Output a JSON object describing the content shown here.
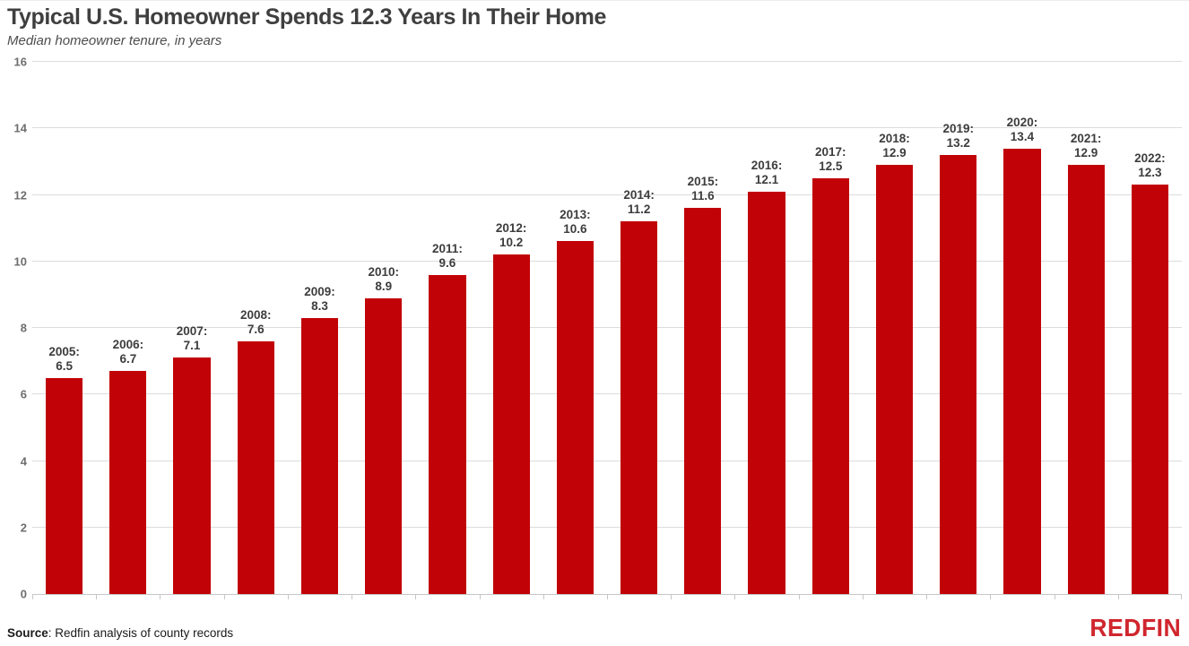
{
  "header": {
    "title": "Typical U.S. Homeowner Spends 12.3 Years In Their Home",
    "subtitle": "Median homeowner tenure, in years"
  },
  "footer": {
    "source_label": "Source",
    "source_text": ": Redfin analysis of county records",
    "logo_text": "REDFIN"
  },
  "colors": {
    "bar": "#c10206",
    "gridline": "#dcdcdc",
    "logo": "#d0262e",
    "title": "#3f3f3f",
    "bar_label": "#3d3d3d",
    "axis_label": "#6e6e6e"
  },
  "chart_data": {
    "type": "bar",
    "title": "Typical U.S. Homeowner Spends 12.3 Years In Their Home",
    "subtitle": "Median homeowner tenure, in years",
    "xlabel": "",
    "ylabel": "",
    "categories": [
      "2005",
      "2006",
      "2007",
      "2008",
      "2009",
      "2010",
      "2011",
      "2012",
      "2013",
      "2014",
      "2015",
      "2016",
      "2017",
      "2018",
      "2019",
      "2020",
      "2021",
      "2022"
    ],
    "values": [
      6.5,
      6.7,
      7.1,
      7.6,
      8.3,
      8.9,
      9.6,
      10.2,
      10.6,
      11.2,
      11.6,
      12.1,
      12.5,
      12.9,
      13.2,
      13.4,
      12.9,
      12.3
    ],
    "bar_labels": [
      "2005: 6.5",
      "2006: 6.7",
      "2007: 7.1",
      "2008: 7.6",
      "2009: 8.3",
      "2010: 8.9",
      "2011: 9.6",
      "2012: 10.2",
      "2013: 10.6",
      "2014: 11.2",
      "2015: 11.6",
      "2016: 12.1",
      "2017: 12.5",
      "2018: 12.9",
      "2019: 13.2",
      "2020: 13.4",
      "2021: 12.9",
      "2022: 12.3"
    ],
    "ylim": [
      0,
      16
    ],
    "yticks": [
      0,
      2,
      4,
      6,
      8,
      10,
      12,
      14,
      16
    ],
    "grid": "horizontal",
    "legend": "none",
    "source": "Source: Redfin analysis of county records"
  }
}
